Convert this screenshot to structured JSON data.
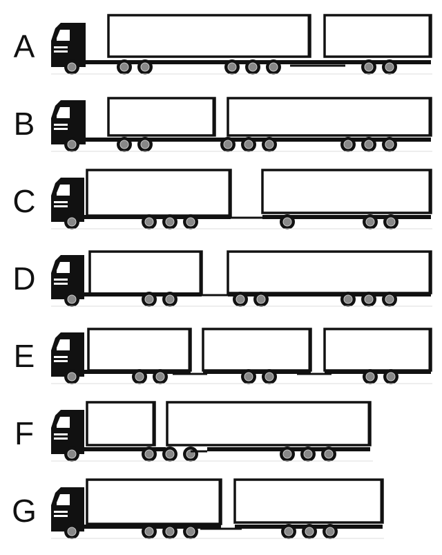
{
  "rows": [
    {
      "label": "A",
      "units": [
        {
          "type": "truck"
        },
        {
          "type": "semitrailer",
          "box_len": "long"
        },
        {
          "type": "drawbar-trailer"
        }
      ]
    },
    {
      "label": "B",
      "units": [
        {
          "type": "truck"
        },
        {
          "type": "link-trailer"
        },
        {
          "type": "semitrailer",
          "box_len": "long"
        }
      ]
    },
    {
      "label": "C",
      "units": [
        {
          "type": "rigid-truck"
        },
        {
          "type": "centre-axle-dolly-trailer"
        }
      ]
    },
    {
      "label": "D",
      "units": [
        {
          "type": "rigid-truck"
        },
        {
          "type": "dolly"
        },
        {
          "type": "semitrailer"
        }
      ]
    },
    {
      "label": "E",
      "units": [
        {
          "type": "rigid-truck"
        },
        {
          "type": "drawbar-trailer"
        },
        {
          "type": "drawbar-trailer"
        }
      ]
    },
    {
      "label": "F",
      "units": [
        {
          "type": "rigid-truck-short"
        },
        {
          "type": "dolly"
        },
        {
          "type": "semitrailer"
        }
      ]
    },
    {
      "label": "G",
      "units": [
        {
          "type": "rigid-truck"
        },
        {
          "type": "drawbar-trailer"
        }
      ]
    }
  ],
  "colors": {
    "ink": "#111111",
    "box": "#ffffff",
    "hub": "#888888",
    "ground": "#dddddd"
  }
}
